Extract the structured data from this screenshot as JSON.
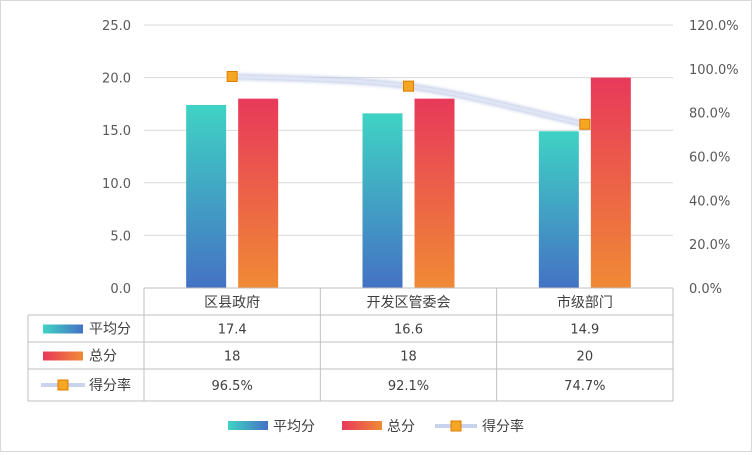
{
  "chart_data": {
    "type": "bar",
    "categories": [
      "区县政府",
      "开发区管委会",
      "市级部门"
    ],
    "series": [
      {
        "name": "平均分",
        "kind": "bar",
        "axis": "left",
        "values": [
          17.4,
          16.6,
          14.9
        ],
        "color_top": "#3fd3c4",
        "color_bottom": "#4472c4"
      },
      {
        "name": "总分",
        "kind": "bar",
        "axis": "left",
        "values": [
          18,
          18,
          20
        ],
        "color_top": "#e8395a",
        "color_bottom": "#f08a35"
      },
      {
        "name": "得分率",
        "kind": "line",
        "axis": "right",
        "values": [
          96.5,
          92.1,
          74.7
        ],
        "line_color": "#c9d3ec",
        "marker_color": "#f5a623"
      }
    ],
    "table": {
      "rows": [
        [
          "17.4",
          "16.6",
          "14.9"
        ],
        [
          "18",
          "18",
          "20"
        ],
        [
          "96.5%",
          "92.1%",
          "74.7%"
        ]
      ]
    },
    "ylim_left": [
      0,
      25
    ],
    "yticks_left": [
      "0.0",
      "5.0",
      "10.0",
      "15.0",
      "20.0",
      "25.0"
    ],
    "ylim_right": [
      0,
      120
    ],
    "yticks_right": [
      "0.0%",
      "20.0%",
      "40.0%",
      "60.0%",
      "80.0%",
      "100.0%",
      "120.0%"
    ],
    "grid": true,
    "legend_position": "bottom"
  }
}
